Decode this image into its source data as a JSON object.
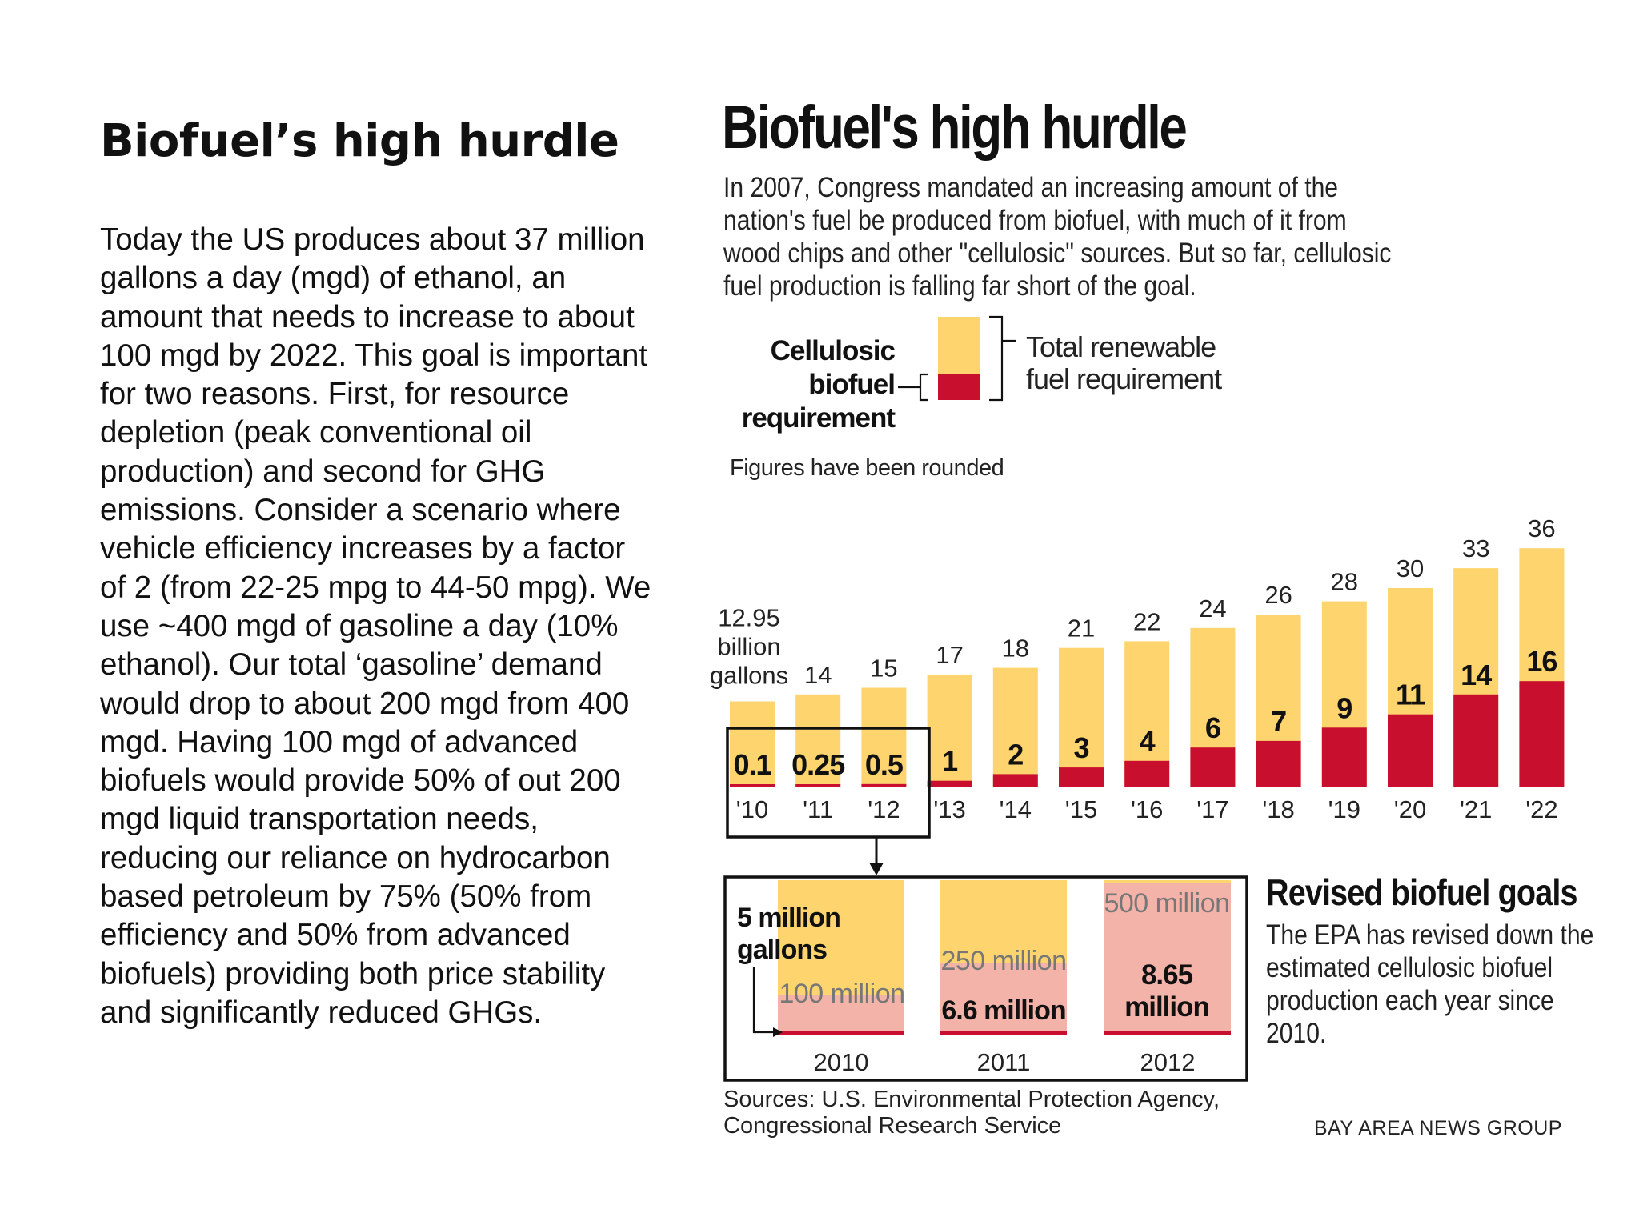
{
  "slide": {
    "title": "Biofuel’s high hurdle",
    "body": "Today the US produces about 37 million gallons a day (mgd) of ethanol, an amount that needs to increase to about 100 mgd by 2022. This goal is important for two reasons. First, for resource depletion (peak conventional oil production) and second for GHG emissions. Consider a scenario where vehicle efficiency increases by a factor of 2 (from 22-25 mpg to 44-50 mpg). We use ~400 mgd of gasoline a day (10% ethanol). Our total ‘gasoline’ demand would drop to about 200 mgd from 400 mgd. Having 100 mgd of advanced biofuels would provide 50% of out 200 mgd liquid transportation needs, reducing our reliance on hydrocarbon based petroleum by 75% (50% from efficiency and 50% from advanced biofuels) providing both price stability and significantly reduced GHGs."
  },
  "infographic": {
    "title": "Biofuel's high hurdle",
    "intro": "In 2007, Congress mandated an increasing amount of the nation's fuel be produced from biofuel, with much of it from wood chips and other \"cellulosic\" sources. But so far, cellulosic fuel production is falling far short of the goal.",
    "sources": "Sources: U.S. Environmental Protection Agency, Congressional Research Service",
    "credit": "BAY AREA NEWS GROUP",
    "revised_title": "Revised biofuel goals",
    "revised_text": "The EPA has revised down the estimated cellulosic biofuel production each year since 2010."
  },
  "chart_data": [
    {
      "type": "bar",
      "legend": {
        "cellulosic": "Cellulosic biofuel requirement",
        "total": "Total renewable fuel requirement",
        "note": "Figures have been rounded"
      },
      "categories": [
        "'10",
        "'11",
        "'12",
        "'13",
        "'14",
        "'15",
        "'16",
        "'17",
        "'18",
        "'19",
        "'20",
        "'21",
        "'22"
      ],
      "series": [
        {
          "name": "Total renewable fuel requirement",
          "values": [
            12.95,
            14,
            15,
            17,
            18,
            21,
            22,
            24,
            26,
            28,
            30,
            33,
            36
          ],
          "labels": [
            "12.95",
            "14",
            "15",
            "17",
            "18",
            "21",
            "22",
            "24",
            "26",
            "28",
            "30",
            "33",
            "36"
          ],
          "color": "#FDD46E"
        },
        {
          "name": "Cellulosic biofuel requirement",
          "values": [
            0.1,
            0.25,
            0.5,
            1,
            2,
            3,
            4,
            6,
            7,
            9,
            11,
            14,
            16
          ],
          "labels": [
            "0.1",
            "0.25",
            "0.5",
            "1",
            "2",
            "3",
            "4",
            "6",
            "7",
            "9",
            "11",
            "14",
            "16"
          ],
          "color": "#C8102E"
        }
      ],
      "first_label_unit": [
        "billion",
        "gallons"
      ],
      "ylim": [
        0,
        36
      ]
    },
    {
      "type": "bar",
      "title": "Revised biofuel goals",
      "categories": [
        "2010",
        "2011",
        "2012"
      ],
      "series": [
        {
          "name": "",
          "values": [
            100,
            250,
            500
          ],
          "labels": [
            "100 million",
            "250 million",
            "500 million"
          ],
          "color": "#F4B3A9"
        },
        {
          "name": "",
          "values": [
            5,
            6.6,
            8.65
          ],
          "labels": [
            "5 million gallons",
            "6.6 million",
            "8.65 million"
          ],
          "color": "#C8102E"
        }
      ],
      "unit": "million gallons"
    }
  ]
}
